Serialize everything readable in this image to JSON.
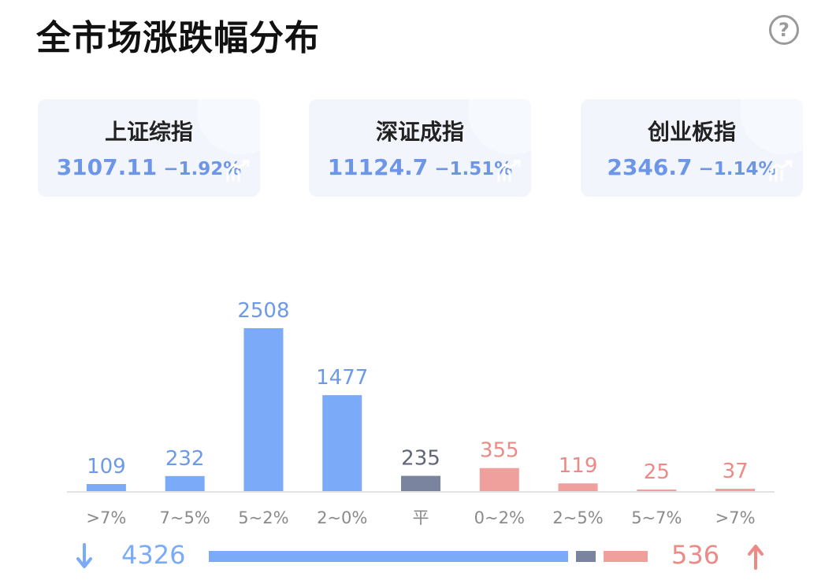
{
  "header": {
    "title": "全市场涨跌幅分布",
    "help_icon": "question-circle-icon"
  },
  "indices": [
    {
      "name": "上证综指",
      "value": "3107.11",
      "change": "−1.92%"
    },
    {
      "name": "深证成指",
      "value": "11124.7",
      "change": "−1.51%"
    },
    {
      "name": "创业板指",
      "value": "2346.7",
      "change": "−1.14%"
    }
  ],
  "chart_data": {
    "type": "bar",
    "categories": [
      ">7%",
      "7~5%",
      "5~2%",
      "2~0%",
      "平",
      "0~2%",
      "2~5%",
      "5~7%",
      ">7%"
    ],
    "values": [
      109,
      232,
      2508,
      1477,
      235,
      355,
      119,
      25,
      37
    ],
    "colors": [
      "#7aaaf8",
      "#7aaaf8",
      "#7aaaf8",
      "#7aaaf8",
      "#7b849e",
      "#f0a09c",
      "#f0a09c",
      "#f0a09c",
      "#f0a09c"
    ],
    "label_colors": [
      "#6d9ae8",
      "#6d9ae8",
      "#6d9ae8",
      "#6d9ae8",
      "#5f6678",
      "#ec8a86",
      "#ec8a86",
      "#ec8a86",
      "#ec8a86"
    ],
    "title": "",
    "xlabel": "",
    "ylabel": "",
    "ylim": [
      0,
      2508
    ],
    "grid": false
  },
  "summary": {
    "down_count": "4326",
    "up_count": "536",
    "down_value": 4326,
    "flat_value": 235,
    "up_value": 536,
    "down_color": "#7aaaf8",
    "flat_color": "#7b849e",
    "up_color": "#f0a09c",
    "down_icon": "arrow-down-icon",
    "up_icon": "arrow-up-icon"
  }
}
